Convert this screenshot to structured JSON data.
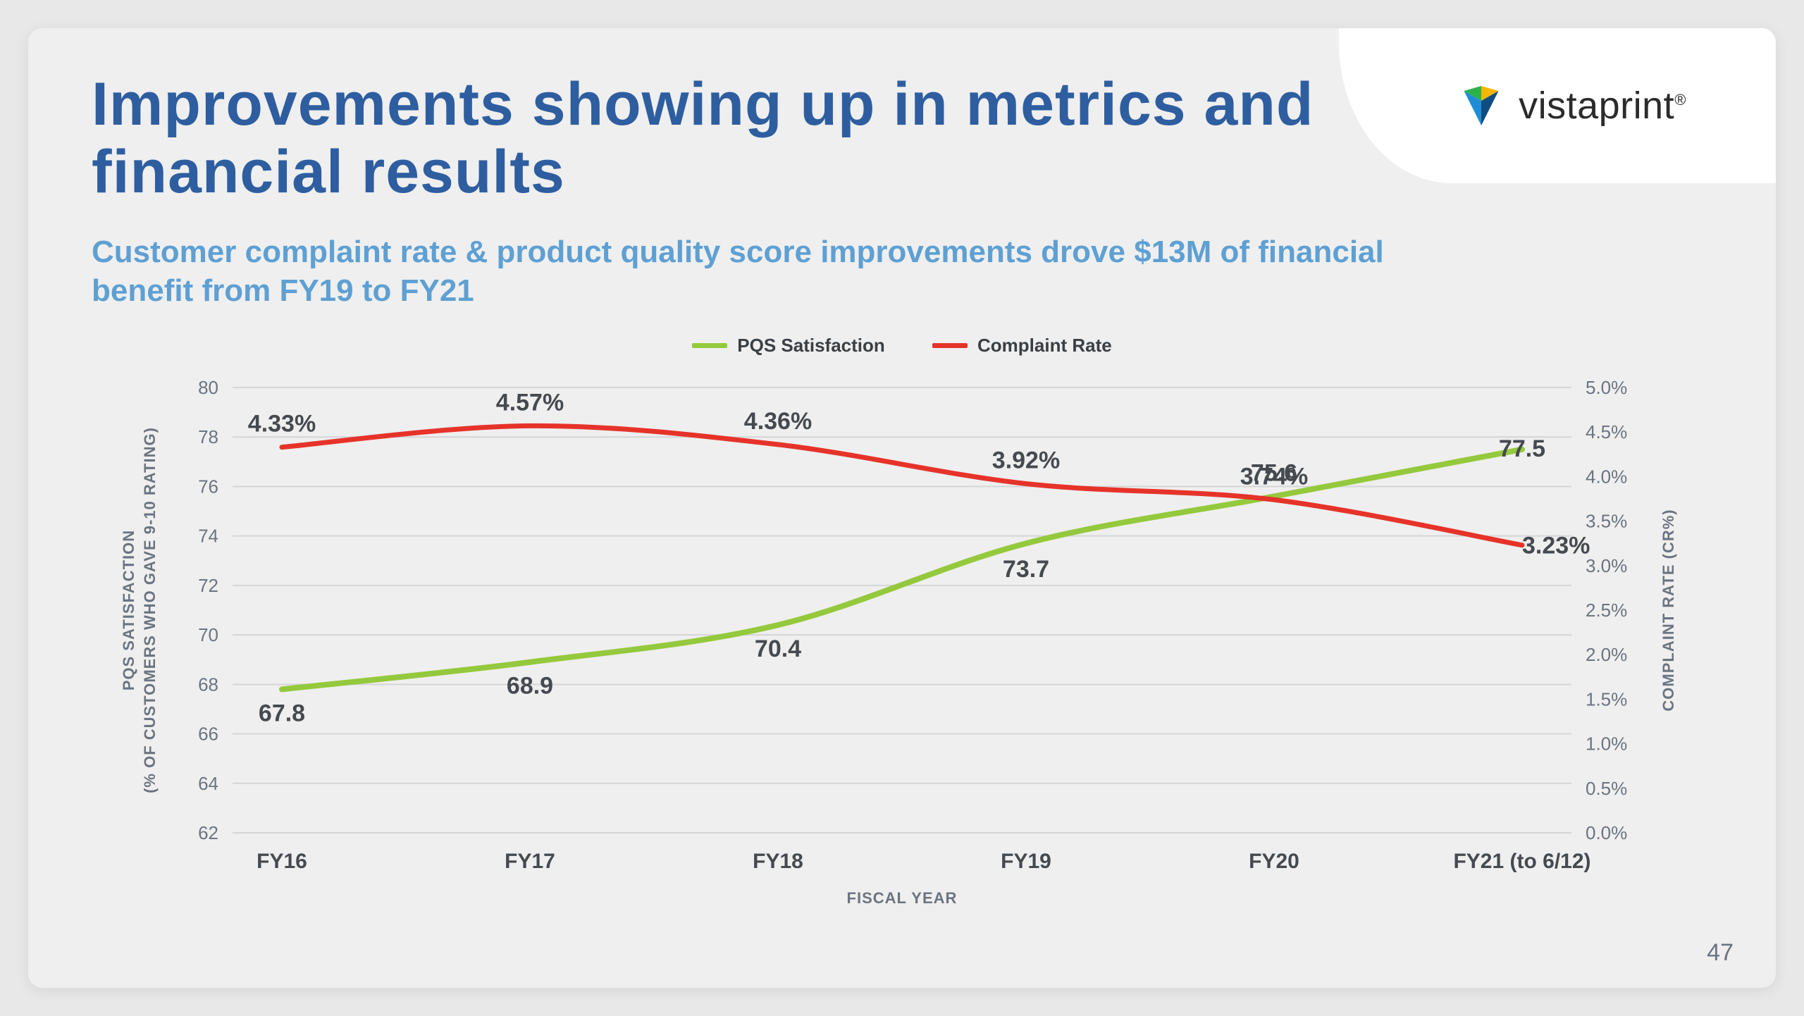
{
  "page_number": "47",
  "title": "Improvements showing up in metrics and financial results",
  "subtitle": "Customer complaint rate & product quality score improvements drove $13M of financial benefit from FY19 to FY21",
  "brand": {
    "name": "vistaprint",
    "logo_colors": [
      "#1f8dd6",
      "#0f4c81",
      "#2db24a",
      "#f7b500"
    ]
  },
  "chart": {
    "type": "line-dual-axis",
    "x_label": "FISCAL YEAR",
    "categories": [
      "FY16",
      "FY17",
      "FY18",
      "FY19",
      "FY20",
      "FY21 (to 6/12)"
    ],
    "left_axis": {
      "label": "PQS SATISFACTION\n(% OF CUSTOMERS WHO GAVE 9-10 RATING)",
      "min": 62,
      "max": 80,
      "ticks": [
        62,
        64,
        66,
        68,
        70,
        72,
        74,
        76,
        78,
        80
      ]
    },
    "right_axis": {
      "label": "COMPLAINT RATE (CR%)",
      "min": 0,
      "max": 5,
      "ticks": [
        "0.0%",
        "0.5%",
        "1.0%",
        "1.5%",
        "2.0%",
        "2.5%",
        "3.0%",
        "3.5%",
        "4.0%",
        "4.5%",
        "5.0%"
      ]
    },
    "series": [
      {
        "name": "PQS Satisfaction",
        "axis": "left",
        "color": "#95c93d",
        "stroke_width": 8,
        "values": [
          67.8,
          68.9,
          70.4,
          73.7,
          75.6,
          77.5
        ],
        "labels": [
          "67.8",
          "68.9",
          "70.4",
          "73.7",
          "75.6",
          "77.5"
        ],
        "label_position": "below"
      },
      {
        "name": "Complaint Rate",
        "axis": "right",
        "color": "#e6332a",
        "stroke_width": 7,
        "values": [
          4.33,
          4.57,
          4.36,
          3.92,
          3.74,
          3.23
        ],
        "labels": [
          "4.33%",
          "4.57%",
          "4.36%",
          "3.92%",
          "3.74%",
          "3.23%"
        ],
        "label_position": "above"
      }
    ],
    "colors": {
      "background": "#efefef",
      "grid": "#d4d5d7",
      "axis_text": "#6b7480",
      "data_label": "#454a50",
      "title": "#2e5ea0",
      "subtitle": "#5ea0d3"
    }
  }
}
